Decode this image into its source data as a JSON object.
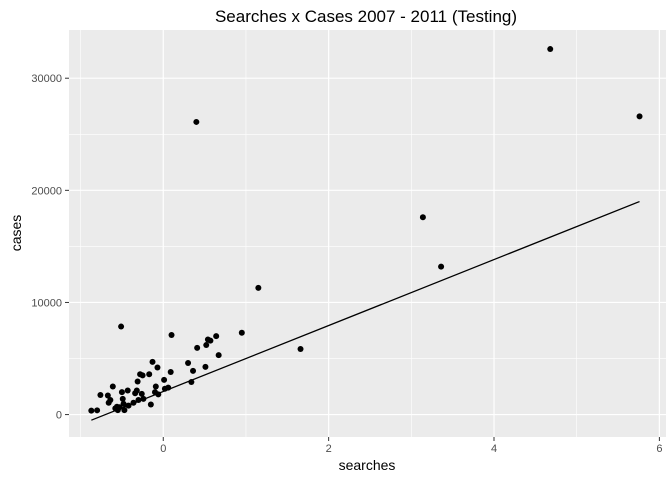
{
  "chart_data": {
    "type": "scatter",
    "title": "Searches x Cases 2007 - 2011 (Testing)",
    "xlabel": "searches",
    "ylabel": "cases",
    "xlim": [
      -1.14,
      6.08
    ],
    "ylim": [
      -2000,
      34300
    ],
    "x_ticks": [
      0,
      2,
      4,
      6
    ],
    "y_ticks": [
      0,
      10000,
      20000,
      30000
    ],
    "grid": true,
    "background": "#ebebeb",
    "grid_color": "#ffffff",
    "point_color": "#000000",
    "line_color": "#000000",
    "points": [
      {
        "x": -0.87,
        "y": 350
      },
      {
        "x": -0.8,
        "y": 380
      },
      {
        "x": -0.76,
        "y": 1750
      },
      {
        "x": -0.67,
        "y": 1700
      },
      {
        "x": -0.66,
        "y": 1050
      },
      {
        "x": -0.64,
        "y": 1300
      },
      {
        "x": -0.61,
        "y": 2500
      },
      {
        "x": -0.58,
        "y": 550
      },
      {
        "x": -0.56,
        "y": 700
      },
      {
        "x": -0.55,
        "y": 400
      },
      {
        "x": -0.53,
        "y": 650
      },
      {
        "x": -0.51,
        "y": 7850
      },
      {
        "x": -0.5,
        "y": 2000
      },
      {
        "x": -0.49,
        "y": 1400
      },
      {
        "x": -0.48,
        "y": 950
      },
      {
        "x": -0.47,
        "y": 400
      },
      {
        "x": -0.43,
        "y": 2150
      },
      {
        "x": -0.42,
        "y": 800
      },
      {
        "x": -0.36,
        "y": 1050
      },
      {
        "x": -0.34,
        "y": 1900
      },
      {
        "x": -0.32,
        "y": 2150
      },
      {
        "x": -0.31,
        "y": 2950
      },
      {
        "x": -0.3,
        "y": 1300
      },
      {
        "x": -0.28,
        "y": 3600
      },
      {
        "x": -0.26,
        "y": 1850
      },
      {
        "x": -0.25,
        "y": 3500
      },
      {
        "x": -0.24,
        "y": 1400
      },
      {
        "x": -0.17,
        "y": 3600
      },
      {
        "x": -0.15,
        "y": 900
      },
      {
        "x": -0.13,
        "y": 4700
      },
      {
        "x": -0.1,
        "y": 2000
      },
      {
        "x": -0.09,
        "y": 2500
      },
      {
        "x": -0.07,
        "y": 4200
      },
      {
        "x": -0.06,
        "y": 1800
      },
      {
        "x": 0.01,
        "y": 3100
      },
      {
        "x": 0.02,
        "y": 2300
      },
      {
        "x": 0.06,
        "y": 2400
      },
      {
        "x": 0.09,
        "y": 3800
      },
      {
        "x": 0.1,
        "y": 7100
      },
      {
        "x": 0.3,
        "y": 4600
      },
      {
        "x": 0.34,
        "y": 2900
      },
      {
        "x": 0.36,
        "y": 3900
      },
      {
        "x": 0.4,
        "y": 26100
      },
      {
        "x": 0.41,
        "y": 5950
      },
      {
        "x": 0.51,
        "y": 4250
      },
      {
        "x": 0.52,
        "y": 6200
      },
      {
        "x": 0.54,
        "y": 6700
      },
      {
        "x": 0.57,
        "y": 6600
      },
      {
        "x": 0.64,
        "y": 7000
      },
      {
        "x": 0.67,
        "y": 5300
      },
      {
        "x": 0.95,
        "y": 7300
      },
      {
        "x": 1.15,
        "y": 11300
      },
      {
        "x": 1.66,
        "y": 5850
      },
      {
        "x": 3.14,
        "y": 17600
      },
      {
        "x": 3.36,
        "y": 13200
      },
      {
        "x": 4.68,
        "y": 32600
      },
      {
        "x": 5.76,
        "y": 26600
      }
    ],
    "fit_line": {
      "x": [
        -0.87,
        5.76
      ],
      "y": [
        -500,
        19000
      ]
    }
  }
}
